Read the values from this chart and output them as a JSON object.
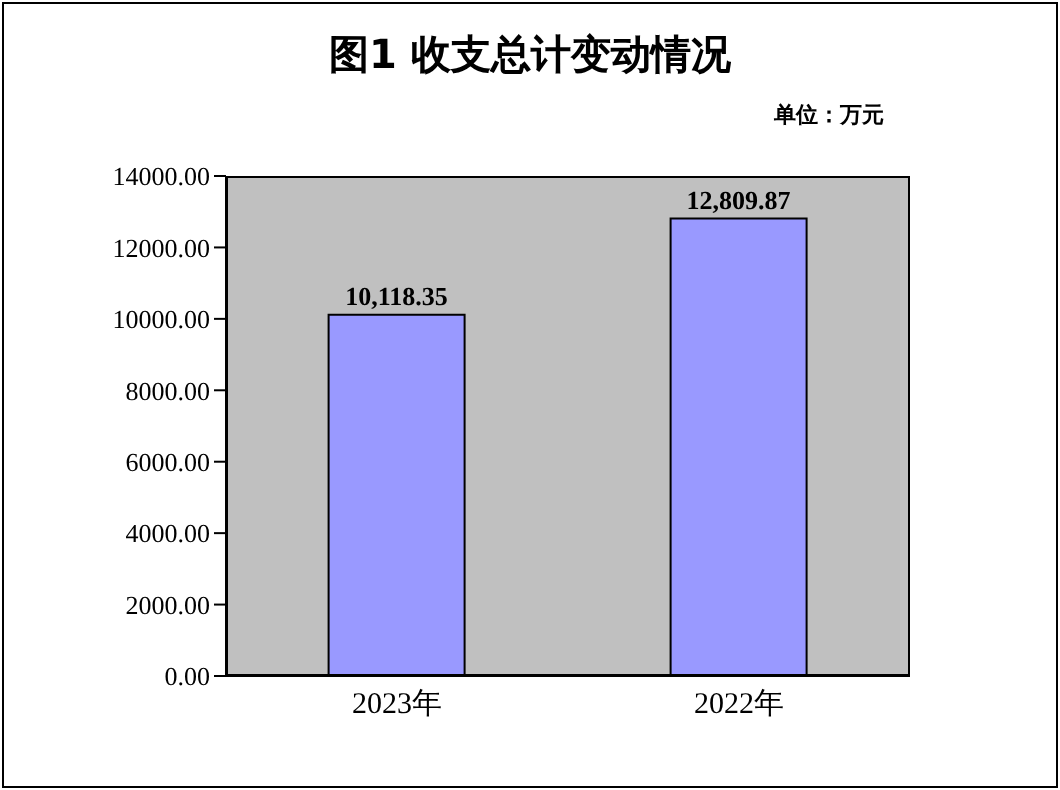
{
  "chart_data": {
    "type": "bar",
    "title": "图1 收支总计变动情况",
    "subtitle": "单位：万元",
    "categories": [
      "2023年",
      "2022年"
    ],
    "values": [
      10118.35,
      12809.87
    ],
    "value_labels": [
      "10,118.35",
      "12,809.87"
    ],
    "color": "#9999ff",
    "ylim": [
      0,
      14000
    ],
    "yticks": [
      {
        "value": 0,
        "label": "0.00"
      },
      {
        "value": 2000,
        "label": "2000.00"
      },
      {
        "value": 4000,
        "label": "4000.00"
      },
      {
        "value": 6000,
        "label": "6000.00"
      },
      {
        "value": 8000,
        "label": "8000.00"
      },
      {
        "value": 10000,
        "label": "10000.00"
      },
      {
        "value": 12000,
        "label": "12000.00"
      },
      {
        "value": 14000,
        "label": "14000.00"
      }
    ],
    "grid": false,
    "legend": false
  }
}
